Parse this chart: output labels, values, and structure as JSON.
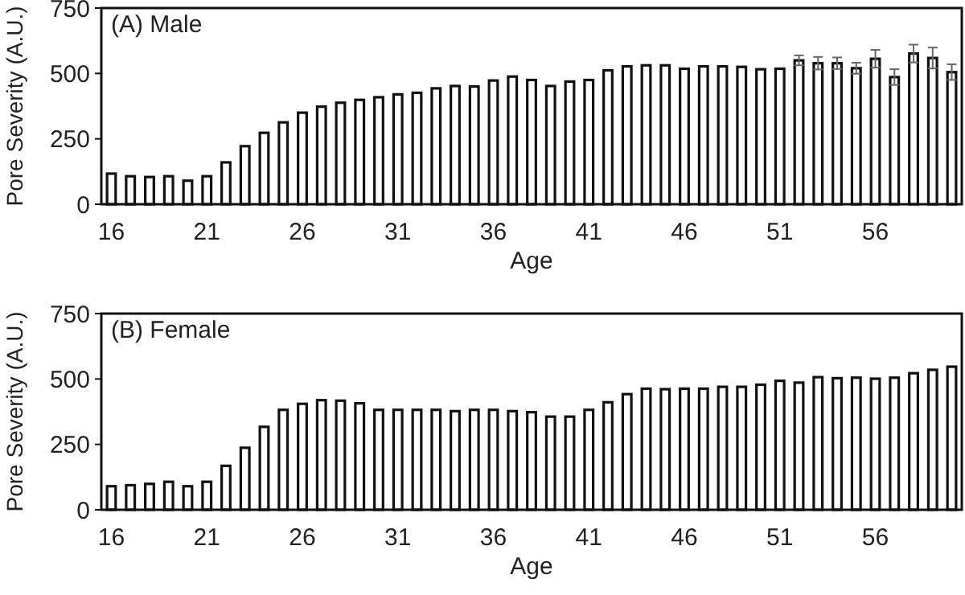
{
  "chart_data": [
    {
      "type": "bar",
      "title": "(A) Male",
      "xlabel": "Age",
      "ylabel": "Pore Severity (A.U.)",
      "categories": [
        "16",
        null,
        null,
        null,
        null,
        "21",
        null,
        null,
        null,
        null,
        "26",
        null,
        null,
        null,
        null,
        "31",
        null,
        null,
        null,
        null,
        "36",
        null,
        null,
        null,
        null,
        "41",
        null,
        null,
        null,
        null,
        "46",
        null,
        null,
        null,
        null,
        "51",
        null,
        null,
        null,
        null,
        "56",
        null,
        null,
        null,
        null
      ],
      "values": [
        117,
        107,
        104,
        107,
        90,
        107,
        160,
        222,
        273,
        313,
        350,
        373,
        388,
        399,
        409,
        420,
        426,
        443,
        452,
        450,
        473,
        488,
        475,
        452,
        469,
        475,
        512,
        527,
        531,
        531,
        518,
        527,
        527,
        525,
        516,
        518,
        550,
        539,
        539,
        520,
        556,
        486,
        576,
        559,
        505
      ],
      "errors": [
        null,
        null,
        null,
        null,
        null,
        null,
        null,
        null,
        null,
        null,
        null,
        null,
        null,
        null,
        null,
        null,
        null,
        null,
        null,
        null,
        null,
        null,
        null,
        null,
        null,
        null,
        null,
        null,
        null,
        null,
        null,
        null,
        null,
        null,
        null,
        null,
        19,
        24,
        22,
        21,
        34,
        30,
        34,
        40,
        30
      ],
      "color": "#ffffff",
      "ylim": [
        0,
        750
      ],
      "yticks": [
        0,
        250,
        500,
        750
      ]
    },
    {
      "type": "bar",
      "title": "(B) Female",
      "xlabel": "Age",
      "ylabel": "Pore Severity (A.U.)",
      "categories": [
        "16",
        null,
        null,
        null,
        null,
        "21",
        null,
        null,
        null,
        null,
        "26",
        null,
        null,
        null,
        null,
        "31",
        null,
        null,
        null,
        null,
        "36",
        null,
        null,
        null,
        null,
        "41",
        null,
        null,
        null,
        null,
        "46",
        null,
        null,
        null,
        null,
        "51",
        null,
        null,
        null,
        null,
        "56",
        null,
        null,
        null,
        null
      ],
      "values": [
        90,
        94,
        99,
        107,
        90,
        107,
        168,
        237,
        317,
        382,
        405,
        419,
        417,
        407,
        382,
        382,
        382,
        382,
        377,
        382,
        382,
        377,
        373,
        356,
        356,
        382,
        411,
        442,
        463,
        461,
        463,
        463,
        470,
        470,
        478,
        493,
        486,
        507,
        503,
        505,
        501,
        505,
        522,
        535,
        547
      ],
      "color": "#ffffff",
      "ylim": [
        0,
        750
      ],
      "yticks": [
        0,
        250,
        500,
        750
      ]
    }
  ]
}
